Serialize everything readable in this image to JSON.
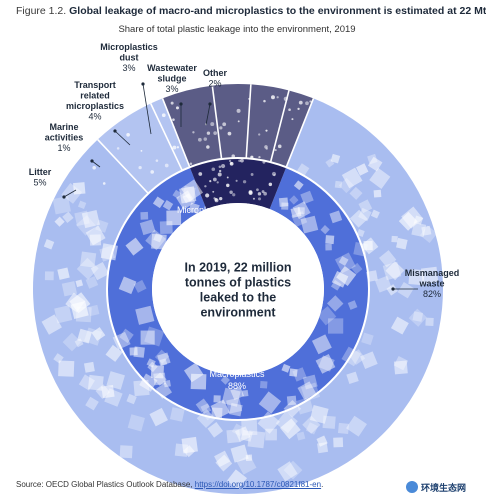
{
  "figure": {
    "label": "Figure 1.2.",
    "title": "Global leakage of macro-and microplastics to the environment is estimated at 22 Mt",
    "subtitle": "Share of total plastic leakage into the environment, 2019"
  },
  "chart_data": {
    "type": "pie",
    "variant": "nested-donut",
    "center_label": "In 2019, 22 million tonnes of plastics leaked to the environment",
    "inner_ring": [
      {
        "name": "Macroplastics",
        "value": 88,
        "value_label": "88%",
        "color": "#4f6fd9"
      },
      {
        "name": "Microplastics",
        "value": 12,
        "value_label": "12%",
        "color": "#23235f"
      }
    ],
    "outer_ring": [
      {
        "name": "Mismanaged waste",
        "value": 82,
        "value_label": "82%",
        "color": "#a9bdf0",
        "group": "Macroplastics"
      },
      {
        "name": "Litter",
        "value": 5,
        "value_label": "5%",
        "color": "#b3c4f1",
        "group": "Macroplastics"
      },
      {
        "name": "Marine activities",
        "value": 1,
        "value_label": "1%",
        "color": "#b3c4f1",
        "group": "Macroplastics"
      },
      {
        "name": "Transport related microplastics",
        "value": 4,
        "value_label": "4%",
        "color": "#5b5c86",
        "group": "Microplastics"
      },
      {
        "name": "Microplastics dust",
        "value": 3,
        "value_label": "3%",
        "color": "#5b5c86",
        "group": "Microplastics"
      },
      {
        "name": "Wastewater sludge",
        "value": 3,
        "value_label": "3%",
        "color": "#5b5c86",
        "group": "Microplastics"
      },
      {
        "name": "Other",
        "value": 2,
        "value_label": "2%",
        "color": "#5b5c86",
        "group": "Microplastics"
      }
    ],
    "outer_labels": [
      {
        "lines": [
          "Mismanaged",
          "waste"
        ],
        "value": "82%"
      },
      {
        "lines": [
          "Litter"
        ],
        "value": "5%"
      },
      {
        "lines": [
          "Marine",
          "activities"
        ],
        "value": "1%"
      },
      {
        "lines": [
          "Transport",
          "related",
          "microplastics"
        ],
        "value": "4%"
      },
      {
        "lines": [
          "Microplastics",
          "dust"
        ],
        "value": "3%"
      },
      {
        "lines": [
          "Wastewater",
          "sludge"
        ],
        "value": "3%"
      },
      {
        "lines": [
          "Other"
        ],
        "value": "2%"
      }
    ],
    "inner_labels": [
      {
        "name": "Microplastics",
        "value": "12%"
      },
      {
        "name": "Macroplastics",
        "value": "88%"
      }
    ],
    "center_lines": [
      "In 2019, 22 million",
      "tonnes of plastics",
      "leaked to the",
      "environment"
    ]
  },
  "source": {
    "prefix": "Source: OECD Global Plastics Outlook Database, ",
    "link": "https://doi.org/10.1787/c0821f81-en",
    "suffix": "."
  },
  "watermark": {
    "text": "环境生态网"
  }
}
